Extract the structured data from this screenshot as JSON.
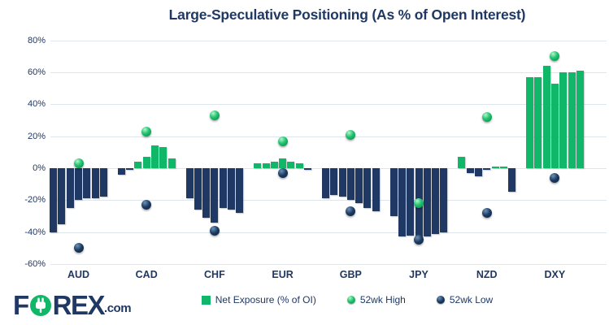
{
  "title": "Large-Speculative Positioning (As % of Open Interest)",
  "colors": {
    "positive_green": "#10b768",
    "negative_navy": "#203864",
    "text_navy": "#1f3864",
    "gridline": "#dde6ed"
  },
  "legend": {
    "items": [
      {
        "label": "Net Exposure (% of OI)",
        "marker": "green-square"
      },
      {
        "label": "52wk High",
        "marker": "green-dot"
      },
      {
        "label": "52wk Low",
        "marker": "navy-dot"
      }
    ]
  },
  "logo": {
    "f": "F",
    "rex": "REX",
    "com": ".com"
  },
  "chart_data": {
    "type": "bar",
    "title": "Large-Speculative Positioning (As % of Open Interest)",
    "xlabel": "",
    "ylabel": "",
    "grid": true,
    "legend_position": "bottom",
    "y_axis": {
      "min": -60,
      "max": 80,
      "step": 20,
      "ticks": [
        {
          "label": "80%",
          "value": 80
        },
        {
          "label": "60%",
          "value": 60
        },
        {
          "label": "40%",
          "value": 40
        },
        {
          "label": "20%",
          "value": 20
        },
        {
          "label": "0%",
          "value": 0
        },
        {
          "label": "-20%",
          "value": -20
        },
        {
          "label": "-40%",
          "value": -40
        },
        {
          "label": "-60%",
          "value": -60
        }
      ]
    },
    "categories": [
      "AUD",
      "CAD",
      "CHF",
      "EUR",
      "GBP",
      "JPY",
      "NZD",
      "DXY"
    ],
    "series": [
      {
        "name": "Net Exposure (% of OI)",
        "type": "grouped-bars",
        "values_per_category": [
          [
            -40,
            -35,
            -25,
            -20,
            -19,
            -19,
            -18
          ],
          [
            -4,
            -1,
            4,
            7,
            14,
            13,
            6
          ],
          [
            -19,
            -26,
            -31,
            -34,
            -25,
            -26,
            -28
          ],
          [
            3,
            3,
            4,
            6,
            4,
            3,
            -1
          ],
          [
            -19,
            -17,
            -18,
            -20,
            -22,
            -25,
            -27
          ],
          [
            -30,
            -43,
            -42,
            -44,
            -43,
            -41,
            -40
          ],
          [
            7,
            -3,
            -5,
            -1,
            1,
            1,
            -15
          ],
          [
            57,
            57,
            64,
            53,
            60,
            60,
            61
          ]
        ]
      },
      {
        "name": "52wk High",
        "type": "point",
        "values": [
          3,
          23,
          33,
          17,
          21,
          -22,
          32,
          70
        ]
      },
      {
        "name": "52wk Low",
        "type": "point",
        "values": [
          -50,
          -23,
          -39,
          -3,
          -27,
          -45,
          -28,
          -6
        ]
      }
    ]
  }
}
